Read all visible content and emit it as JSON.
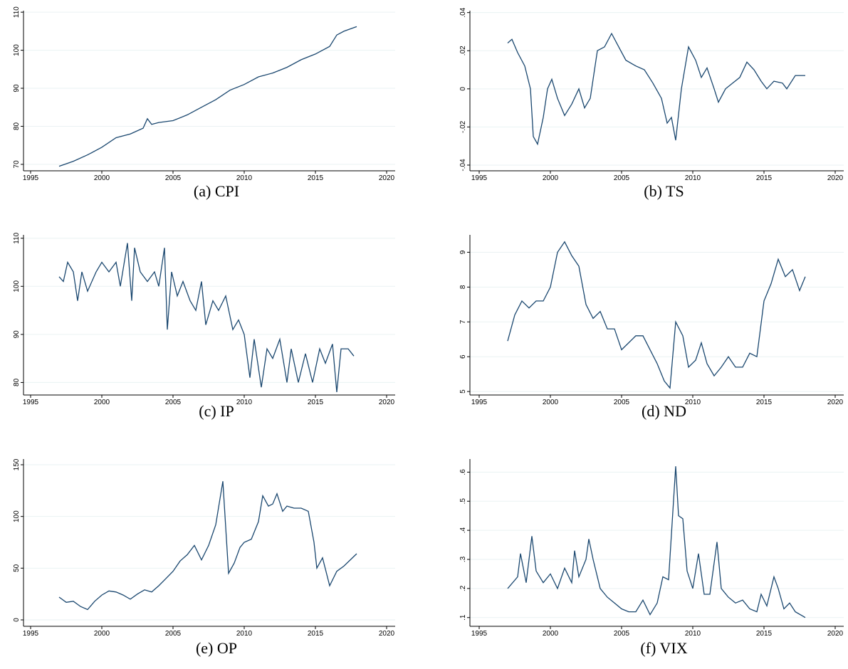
{
  "chart_data": [
    {
      "type": "line",
      "title": "(a) CPI",
      "color": "#1a476f",
      "grid": true,
      "x": [
        1997,
        1998,
        1999,
        2000,
        2001,
        2002,
        2002.9,
        2003.2,
        2003.5,
        2004,
        2005,
        2006,
        2007,
        2008,
        2009,
        2010,
        2011,
        2012,
        2013,
        2014,
        2015,
        2016,
        2016.5,
        2017,
        2017.9
      ],
      "values": [
        69.5,
        70.8,
        72.5,
        74.5,
        77,
        78,
        79.5,
        82,
        80.5,
        81,
        81.5,
        83,
        85,
        87,
        89.5,
        91,
        93,
        94,
        95.5,
        97.5,
        99,
        101,
        104,
        105,
        106.2
      ],
      "xlim": [
        1994.5,
        2020.6
      ],
      "xticks": [
        1995,
        2000,
        2005,
        2010,
        2015,
        2020
      ],
      "ylim": [
        68.3,
        110.4
      ],
      "yticks": [
        70,
        80,
        90,
        100,
        110
      ]
    },
    {
      "type": "line",
      "title": "(b) TS",
      "color": "#1a476f",
      "grid": true,
      "x": [
        1997,
        1997.3,
        1997.7,
        1998.2,
        1998.6,
        1998.8,
        1999.1,
        1999.5,
        1999.8,
        2000.1,
        2000.5,
        2001,
        2001.5,
        2002,
        2002.4,
        2002.8,
        2003.3,
        2003.8,
        2004.3,
        2004.8,
        2005.3,
        2006,
        2006.6,
        2007.2,
        2007.8,
        2008.2,
        2008.5,
        2008.8,
        2009.2,
        2009.7,
        2010.2,
        2010.6,
        2011,
        2011.5,
        2011.8,
        2012.3,
        2012.8,
        2013.3,
        2013.8,
        2014.3,
        2014.8,
        2015.2,
        2015.7,
        2016.3,
        2016.6,
        2017.2,
        2017.9
      ],
      "values": [
        0.024,
        0.026,
        0.019,
        0.012,
        0.0,
        -0.025,
        -0.029,
        -0.015,
        0.0,
        0.005,
        -0.005,
        -0.014,
        -0.008,
        0.0,
        -0.01,
        -0.005,
        0.02,
        0.022,
        0.029,
        0.022,
        0.015,
        0.012,
        0.01,
        0.003,
        -0.005,
        -0.018,
        -0.015,
        -0.027,
        0.0,
        0.022,
        0.015,
        0.006,
        0.011,
        0.0,
        -0.007,
        0.0,
        0.003,
        0.006,
        0.014,
        0.01,
        0.004,
        0.0,
        0.004,
        0.003,
        0.0,
        0.007,
        0.007
      ],
      "xlim": [
        1994.35,
        2020.6
      ],
      "xticks": [
        1995,
        2000,
        2005,
        2010,
        2015,
        2020
      ],
      "ylim": [
        -0.043,
        0.041
      ],
      "yticks": [
        {
          "value": -0.04,
          "label": "-.04"
        },
        {
          "value": -0.02,
          "label": "-.02"
        },
        0,
        {
          "value": 0.02,
          "label": ".02"
        },
        {
          "value": 0.04,
          "label": ".04"
        }
      ]
    },
    {
      "type": "line",
      "title": "(c) IP",
      "color": "#1a476f",
      "grid": true,
      "x": [
        1997,
        1997.3,
        1997.6,
        1998,
        1998.3,
        1998.6,
        1999,
        1999.6,
        2000,
        2000.5,
        2001,
        2001.3,
        2001.8,
        2002.1,
        2002.3,
        2002.7,
        2003.2,
        2003.7,
        2004,
        2004.4,
        2004.6,
        2004.9,
        2005.3,
        2005.7,
        2006.2,
        2006.6,
        2007,
        2007.3,
        2007.8,
        2008.2,
        2008.7,
        2009.2,
        2009.6,
        2010,
        2010.4,
        2010.7,
        2011.2,
        2011.6,
        2012,
        2012.5,
        2013,
        2013.3,
        2013.8,
        2014.3,
        2014.8,
        2015.3,
        2015.7,
        2016.2,
        2016.5,
        2016.8,
        2017.3,
        2017.7
      ],
      "values": [
        102,
        101,
        105,
        103,
        97,
        103,
        99,
        103,
        105,
        103,
        105,
        100,
        109,
        97,
        108,
        103,
        101,
        103,
        100,
        108,
        91,
        103,
        98,
        101,
        97,
        95,
        101,
        92,
        97,
        95,
        98,
        91,
        93,
        90,
        81,
        89,
        79,
        87,
        85,
        89,
        80,
        87,
        80,
        86,
        80,
        87,
        84,
        88,
        78,
        87,
        87,
        85.5
      ],
      "xlim": [
        1994.5,
        2020.6
      ],
      "xticks": [
        1995,
        2000,
        2005,
        2010,
        2015,
        2020
      ],
      "ylim": [
        77.4,
        110.7
      ],
      "yticks": [
        80,
        90,
        100,
        110
      ]
    },
    {
      "type": "line",
      "title": "(d) ND",
      "color": "#1a476f",
      "grid": true,
      "x": [
        1997,
        1997.5,
        1998,
        1998.5,
        1999,
        1999.5,
        2000,
        2000.5,
        2001,
        2001.5,
        2002,
        2002.5,
        2003,
        2003.5,
        2004,
        2004.5,
        2005,
        2005.5,
        2006,
        2006.5,
        2007,
        2007.5,
        2008,
        2008.4,
        2008.8,
        2009.3,
        2009.7,
        2010.2,
        2010.6,
        2011,
        2011.5,
        2012,
        2012.5,
        2013,
        2013.5,
        2014,
        2014.5,
        2015,
        2015.5,
        2016,
        2016.5,
        2017,
        2017.5,
        2017.9
      ],
      "values": [
        6.45,
        7.2,
        7.6,
        7.4,
        7.6,
        7.6,
        8.0,
        9.0,
        9.3,
        8.9,
        8.6,
        7.5,
        7.1,
        7.3,
        6.8,
        6.8,
        6.2,
        6.4,
        6.6,
        6.6,
        6.2,
        5.8,
        5.3,
        5.1,
        7.0,
        6.6,
        5.7,
        5.9,
        6.4,
        5.8,
        5.45,
        5.7,
        6.0,
        5.7,
        5.7,
        6.1,
        6.0,
        7.6,
        8.1,
        8.8,
        8.3,
        8.5,
        7.9,
        8.3
      ],
      "xlim": [
        1994.35,
        2020.6
      ],
      "xticks": [
        1995,
        2000,
        2005,
        2010,
        2015,
        2020
      ],
      "ylim": [
        4.9,
        9.5
      ],
      "yticks": [
        5,
        6,
        7,
        8,
        9
      ]
    },
    {
      "type": "line",
      "title": "(e) OP",
      "color": "#1a476f",
      "grid": true,
      "x": [
        1997,
        1997.5,
        1998,
        1998.5,
        1999,
        1999.5,
        2000,
        2000.5,
        2001,
        2001.5,
        2002,
        2002.5,
        2003,
        2003.5,
        2004,
        2004.5,
        2005,
        2005.5,
        2006,
        2006.5,
        2007,
        2007.5,
        2008,
        2008.5,
        2008.9,
        2009.3,
        2009.7,
        2010,
        2010.5,
        2011,
        2011.3,
        2011.7,
        2012,
        2012.3,
        2012.7,
        2013,
        2013.5,
        2014,
        2014.5,
        2014.9,
        2015.1,
        2015.5,
        2016,
        2016.5,
        2017,
        2017.9
      ],
      "values": [
        22,
        17,
        18,
        13,
        10,
        18,
        24,
        28,
        27,
        24,
        20,
        25,
        29,
        27,
        33,
        40,
        47,
        57,
        63,
        72,
        58,
        72,
        92,
        134,
        45,
        55,
        70,
        75,
        78,
        95,
        120,
        110,
        112,
        122,
        105,
        110,
        108,
        108,
        105,
        75,
        50,
        60,
        33,
        47,
        52,
        64
      ],
      "xlim": [
        1994.5,
        2020.6
      ],
      "xticks": [
        1995,
        2000,
        2005,
        2010,
        2015,
        2020
      ],
      "ylim": [
        -6.2,
        155.5
      ],
      "yticks": [
        0,
        50,
        100,
        150
      ]
    },
    {
      "type": "line",
      "title": "(f) VIX",
      "color": "#1a476f",
      "grid": true,
      "x": [
        1997,
        1997.7,
        1997.9,
        1998.3,
        1998.7,
        1999,
        1999.5,
        2000,
        2000.5,
        2001,
        2001.5,
        2001.7,
        2002,
        2002.5,
        2002.7,
        2003,
        2003.5,
        2004,
        2004.5,
        2005,
        2005.5,
        2006,
        2006.5,
        2007,
        2007.5,
        2007.9,
        2008.3,
        2008.8,
        2009,
        2009.3,
        2009.6,
        2010,
        2010.4,
        2010.8,
        2011.2,
        2011.7,
        2012,
        2012.5,
        2013,
        2013.5,
        2014,
        2014.5,
        2014.8,
        2015.2,
        2015.7,
        2016,
        2016.4,
        2016.8,
        2017.2,
        2017.9
      ],
      "values": [
        0.2,
        0.24,
        0.32,
        0.22,
        0.38,
        0.26,
        0.22,
        0.25,
        0.2,
        0.27,
        0.22,
        0.33,
        0.24,
        0.3,
        0.37,
        0.3,
        0.2,
        0.17,
        0.15,
        0.13,
        0.12,
        0.12,
        0.16,
        0.11,
        0.15,
        0.24,
        0.23,
        0.62,
        0.45,
        0.44,
        0.26,
        0.2,
        0.32,
        0.18,
        0.18,
        0.36,
        0.2,
        0.17,
        0.15,
        0.16,
        0.13,
        0.12,
        0.18,
        0.14,
        0.24,
        0.2,
        0.13,
        0.15,
        0.12,
        0.1
      ],
      "xlim": [
        1994.35,
        2020.6
      ],
      "xticks": [
        1995,
        2000,
        2005,
        2010,
        2015,
        2020
      ],
      "ylim": [
        0.07,
        0.645
      ],
      "yticks": [
        {
          "value": 0.1,
          "label": ".1"
        },
        {
          "value": 0.2,
          "label": ".2"
        },
        {
          "value": 0.3,
          "label": ".3"
        },
        {
          "value": 0.4,
          "label": ".4"
        },
        {
          "value": 0.5,
          "label": ".5"
        },
        {
          "value": 0.6,
          "label": ".6"
        }
      ]
    }
  ]
}
